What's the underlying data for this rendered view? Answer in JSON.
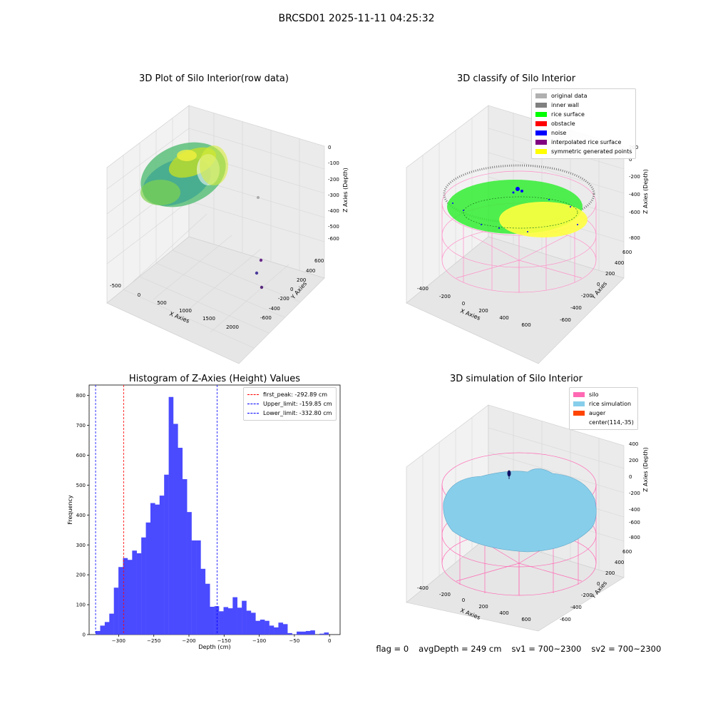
{
  "suptitle": "BRCSD01 2025-11-11 04:25:32",
  "panels": {
    "raw": {
      "title": "3D Plot of Silo Interior(row data)",
      "xlabel": "X Axies",
      "ylabel": "Y Axies",
      "zlabel": "Z Axies (Depth)",
      "xticks": [
        "-500",
        "0",
        "500",
        "1000",
        "1500",
        "2000"
      ],
      "yticks": [
        "600",
        "400",
        "200",
        "0",
        "-200",
        "-400",
        "-600"
      ],
      "zticks": [
        "0",
        "-100",
        "-200",
        "-300",
        "-400",
        "-500",
        "-600"
      ]
    },
    "classify": {
      "title": "3D classify of Silo Interior",
      "xlabel": "X Axies",
      "ylabel": "Y Axies",
      "zlabel": "Z Axies (Depth)",
      "xticks": [
        "-400",
        "-200",
        "0",
        "200",
        "400",
        "600"
      ],
      "yticks": [
        "600",
        "400",
        "200",
        "0",
        "-200",
        "-400",
        "-600"
      ],
      "zticks": [
        "200",
        "0",
        "-200",
        "-400",
        "-600",
        "-800"
      ],
      "legend": [
        {
          "label": "original data",
          "color": "#b0b0b0"
        },
        {
          "label": "inner wall",
          "color": "#808080"
        },
        {
          "label": "rice surface",
          "color": "#00ff00"
        },
        {
          "label": "obstacle",
          "color": "#ff0000"
        },
        {
          "label": "noise",
          "color": "#0000ff"
        },
        {
          "label": "interpolated rice surface",
          "color": "#800080"
        },
        {
          "label": "symmetric generated points",
          "color": "#ffff00"
        }
      ]
    },
    "simulation": {
      "title": "3D simulation of Silo Interior",
      "xlabel": "X Axies",
      "ylabel": "Y Axies",
      "zlabel": "Z Axies (Depth)",
      "xticks": [
        "-400",
        "-200",
        "0",
        "200",
        "400",
        "600"
      ],
      "yticks": [
        "600",
        "400",
        "200",
        "0",
        "-200",
        "-400",
        "-600"
      ],
      "zticks": [
        "400",
        "200",
        "0",
        "-200",
        "-400",
        "-600",
        "-800"
      ],
      "legend": [
        {
          "label": "silo",
          "color": "#ff69b4"
        },
        {
          "label": "rice simulation",
          "color": "#87ceeb"
        },
        {
          "label": "auger",
          "color": "#ff4500"
        },
        {
          "label": "center(114,-35)",
          "color": ""
        }
      ]
    }
  },
  "chart_data": {
    "type": "bar",
    "title": "Histogram of Z-Axies (Height) Values",
    "xlabel": "Depth (cm)",
    "ylabel": "Frequency",
    "xlim": [
      -342,
      15
    ],
    "ylim": [
      0,
      835
    ],
    "xticks": [
      -300,
      -250,
      -200,
      -150,
      -100,
      -50,
      0
    ],
    "yticks": [
      0,
      100,
      200,
      300,
      400,
      500,
      600,
      700,
      800
    ],
    "bar_color": "#4a4aff",
    "bin_width": 6.5,
    "bin_starts": [
      -332.8,
      -326.3,
      -319.8,
      -313.3,
      -306.8,
      -300.3,
      -293.8,
      -287.3,
      -280.8,
      -274.3,
      -267.8,
      -261.3,
      -254.8,
      -248.3,
      -241.8,
      -235.3,
      -228.8,
      -222.3,
      -215.8,
      -209.3,
      -202.8,
      -196.3,
      -189.8,
      -183.3,
      -176.8,
      -170.3,
      -163.8,
      -157.3,
      -150.8,
      -144.3,
      -137.8,
      -131.3,
      -124.8,
      -118.3,
      -111.8,
      -105.3,
      -98.8,
      -92.3,
      -85.8,
      -79.3,
      -72.8,
      -66.3,
      -59.8,
      -53.3,
      -46.8,
      -40.3,
      -33.8,
      -27.3,
      -20.8,
      -14.3,
      -7.8,
      -1.3
    ],
    "values": [
      12,
      30,
      42,
      70,
      157,
      226,
      256,
      250,
      281,
      272,
      325,
      375,
      440,
      435,
      465,
      535,
      795,
      705,
      625,
      520,
      410,
      315,
      315,
      220,
      170,
      93,
      95,
      78,
      92,
      88,
      125,
      90,
      113,
      80,
      73,
      46,
      50,
      46,
      30,
      24,
      40,
      35,
      5,
      1,
      10,
      10,
      12,
      14,
      0,
      3,
      7,
      0
    ],
    "vlines": [
      {
        "label": "first_peak: -292.89 cm",
        "x": -292.89,
        "color": "#ff0000"
      },
      {
        "label": "Upper_limit: -159.85 cm",
        "x": -159.85,
        "color": "#0000ff"
      },
      {
        "label": "Lower_limit: -332.80 cm",
        "x": -332.8,
        "color": "#0000ff"
      }
    ]
  },
  "footer": {
    "flag": "flag = 0",
    "avg": "avgDepth = 249 cm",
    "sv1": "sv1 = 700~2300",
    "sv2": "sv2 = 700~2300"
  }
}
